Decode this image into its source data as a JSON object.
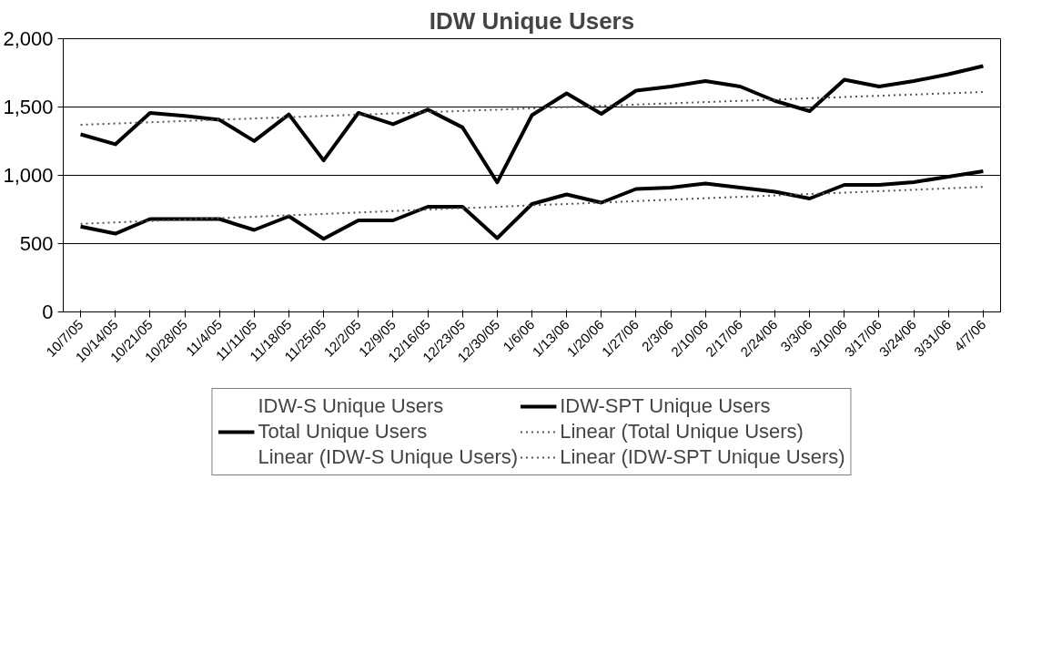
{
  "chart_data": {
    "type": "line",
    "title": "IDW Unique Users",
    "categories": [
      "10/7/05",
      "10/14/05",
      "10/21/05",
      "10/28/05",
      "11/4/05",
      "11/11/05",
      "11/18/05",
      "11/25/05",
      "12/2/05",
      "12/9/05",
      "12/16/05",
      "12/23/05",
      "12/30/05",
      "1/6/06",
      "1/13/06",
      "1/20/06",
      "1/27/06",
      "2/3/06",
      "2/10/06",
      "2/17/06",
      "2/24/06",
      "3/3/06",
      "3/10/06",
      "3/17/06",
      "3/24/06",
      "3/31/06",
      "4/7/06"
    ],
    "series": [
      {
        "name": "IDW-S Unique Users",
        "values": [
          null,
          null,
          null,
          null,
          null,
          null,
          null,
          null,
          null,
          null,
          null,
          null,
          null,
          null,
          null,
          null,
          null,
          null,
          null,
          null,
          null,
          null,
          null,
          null,
          null,
          null,
          null
        ]
      },
      {
        "name": "IDW-SPT Unique Users",
        "color": "#000000",
        "values": [
          625,
          573,
          680,
          680,
          680,
          600,
          700,
          535,
          670,
          670,
          770,
          770,
          540,
          790,
          860,
          800,
          900,
          910,
          940,
          910,
          880,
          830,
          930,
          930,
          950,
          990,
          1030
        ]
      },
      {
        "name": "Total Unique Users",
        "color": "#000000",
        "values": [
          1300,
          1227,
          1457,
          1435,
          1406,
          1251,
          1446,
          1109,
          1457,
          1374,
          1481,
          1351,
          948,
          1440,
          1600,
          1450,
          1620,
          1650,
          1690,
          1650,
          1545,
          1470,
          1700,
          1650,
          1690,
          1740,
          1800
        ]
      },
      {
        "name": "Linear (Total Unique Users)",
        "color": "#555555",
        "line_style": "dotted",
        "x": [
          "10/7/05",
          "4/7/06"
        ],
        "values": [
          1370,
          1610
        ]
      },
      {
        "name": "Linear (IDW-S Unique Users)",
        "line_style": "dotted",
        "x": [
          "10/7/05",
          "4/7/06"
        ],
        "values": [
          null,
          null
        ]
      },
      {
        "name": "Linear (IDW-SPT Unique Users)",
        "color": "#555555",
        "line_style": "dotted",
        "x": [
          "10/7/05",
          "4/7/06"
        ],
        "values": [
          645,
          915
        ]
      }
    ],
    "ylim": [
      0,
      2000
    ],
    "yticks": [
      {
        "value": 0,
        "label": "0"
      },
      {
        "value": 500,
        "label": "500"
      },
      {
        "value": 1000,
        "label": "1,000"
      },
      {
        "value": 1500,
        "label": "1,500"
      },
      {
        "value": 2000,
        "label": "2,000"
      }
    ],
    "grid": "y",
    "legend": "bottom",
    "line_style": "solid",
    "marker": "none"
  }
}
